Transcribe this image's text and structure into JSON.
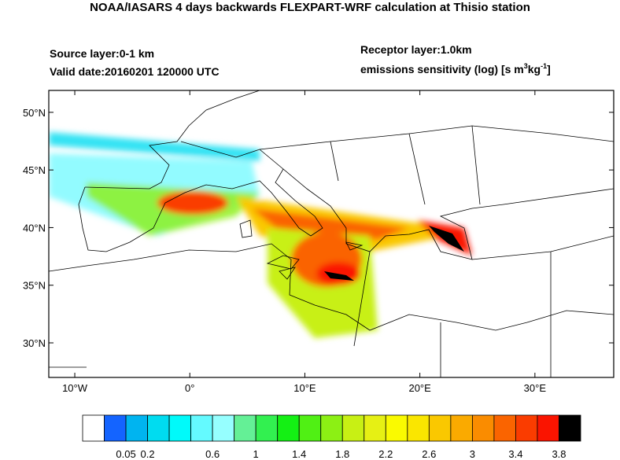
{
  "header": {
    "title": "NOAA/IASARS 4 days backwards FLEXPART-WRF calculation at Thisio station",
    "source_layer": "Source layer:0-1 km",
    "valid_date": "Valid date:20160201 120000 UTC",
    "receptor_layer": "Receptor layer:1.0km",
    "units": [
      "emissions sensitivity (log) [s m",
      "3",
      "kg",
      "-1",
      "]"
    ]
  },
  "map": {
    "xlim": [
      -12.26,
      36.85
    ],
    "ylim": [
      27.0,
      51.9
    ],
    "lat_ticks": [
      {
        "value": 50,
        "label": "50°N"
      },
      {
        "value": 45,
        "label": "45°N"
      },
      {
        "value": 40,
        "label": "40°N"
      },
      {
        "value": 35,
        "label": "35°N"
      },
      {
        "value": 30,
        "label": "30°N"
      }
    ],
    "lon_ticks": [
      {
        "value": -10,
        "label": "10°W"
      },
      {
        "value": 0,
        "label": "0°"
      },
      {
        "value": 10,
        "label": "10°E"
      },
      {
        "value": 20,
        "label": "20°E"
      },
      {
        "value": 30,
        "label": "30°E"
      }
    ]
  },
  "colorbar": {
    "colors": [
      "#ffffff",
      "#1464ff",
      "#00b4f0",
      "#00dcf0",
      "#00fafa",
      "#64faff",
      "#96ffff",
      "#64f096",
      "#32f050",
      "#14f014",
      "#50f014",
      "#8cf014",
      "#c8f014",
      "#e6f014",
      "#fafa00",
      "#fae600",
      "#fac800",
      "#faaa00",
      "#fa8c00",
      "#fa6400",
      "#fa3c00",
      "#fa1400",
      "#000000"
    ],
    "labels": [
      "0.05",
      "0.2",
      "0.6",
      "1",
      "1.4",
      "1.8",
      "2.2",
      "2.6",
      "3",
      "3.4",
      "3.8"
    ]
  }
}
